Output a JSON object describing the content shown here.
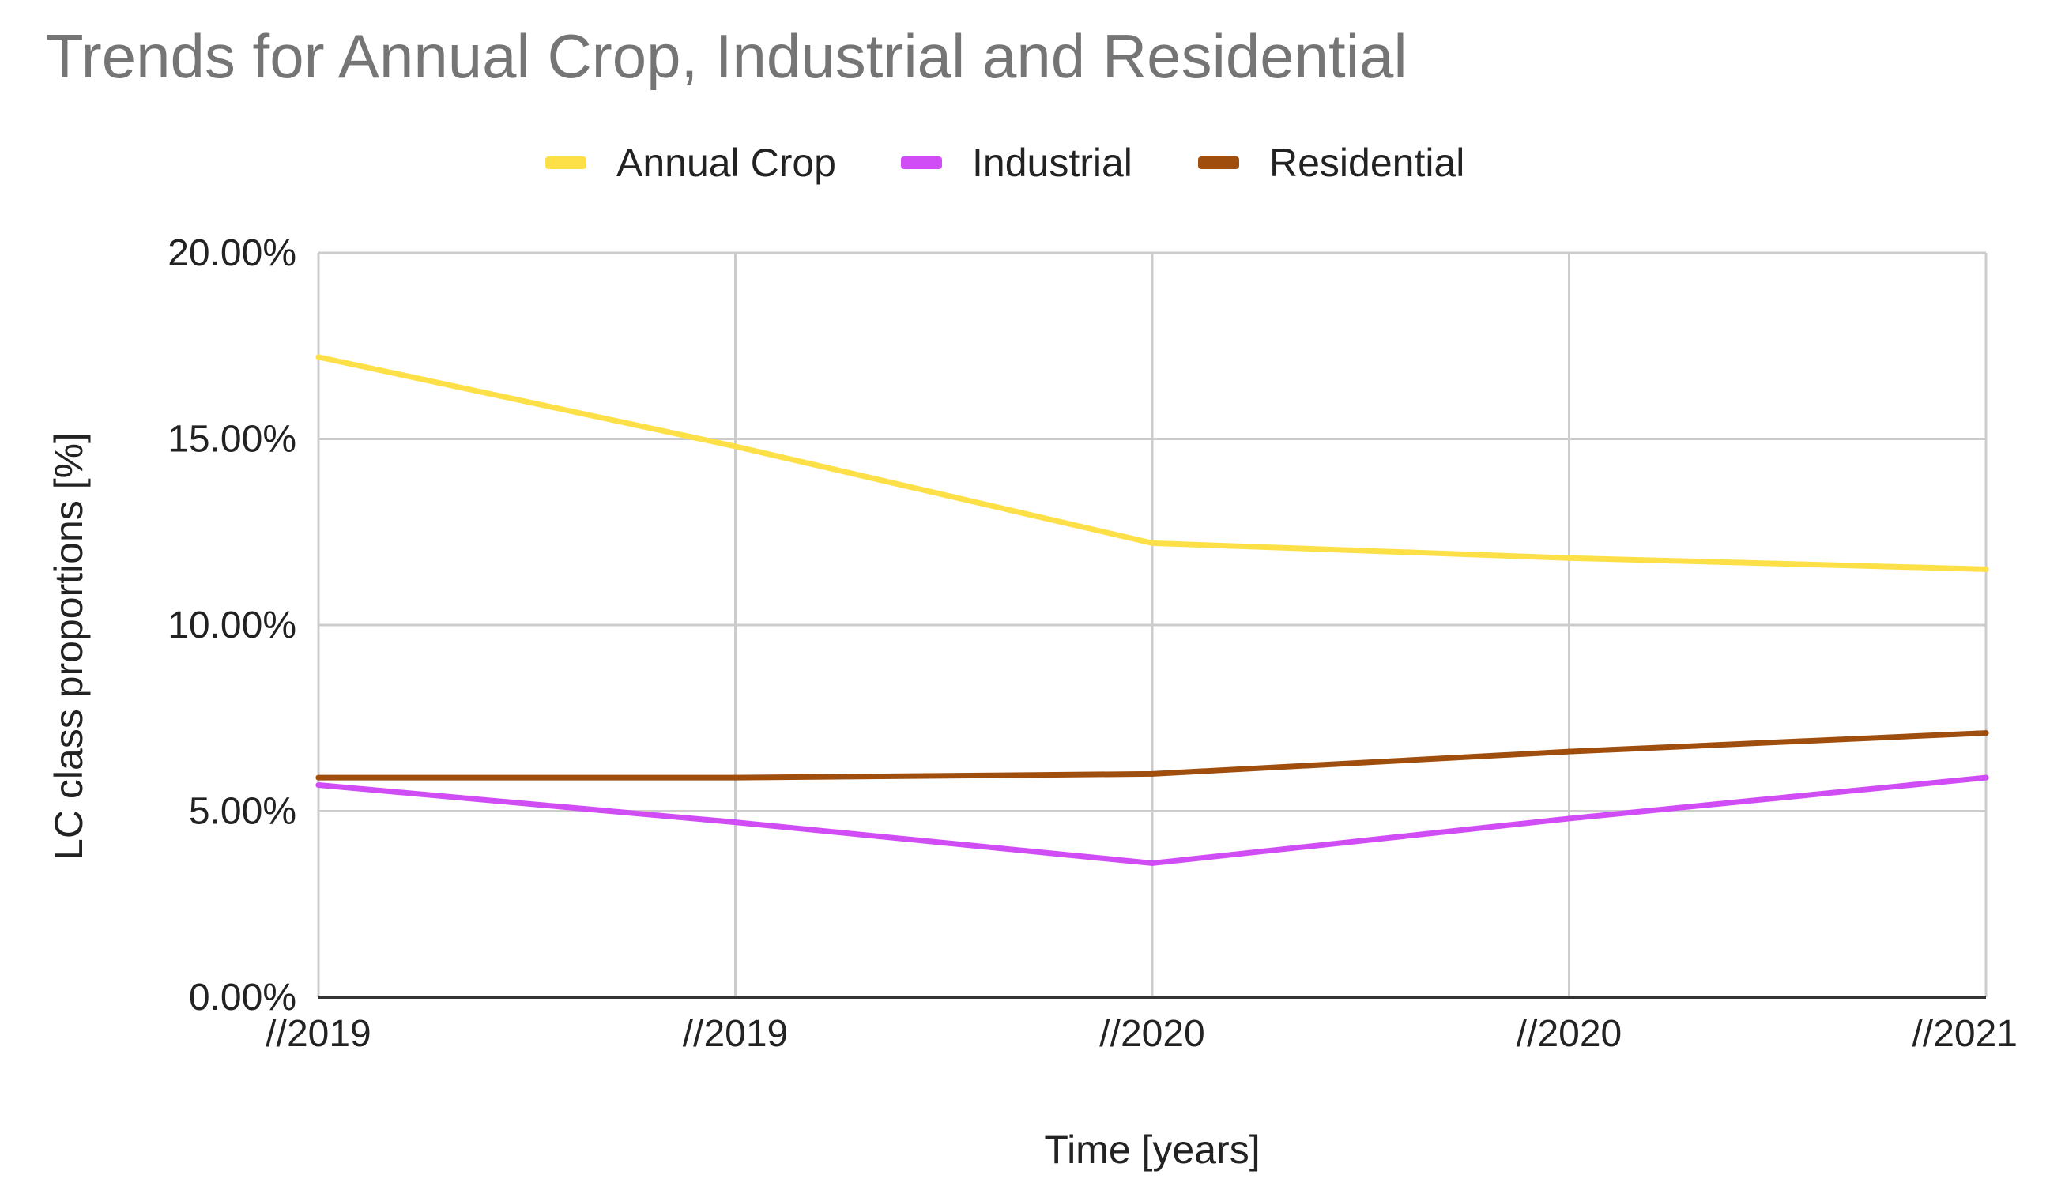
{
  "chart_data": {
    "type": "line",
    "title": "Trends for Annual Crop, Industrial and Residential",
    "xlabel": "Time [years]",
    "ylabel": "LC class proportions [%]",
    "categories": [
      "//2019",
      "//2019",
      "//2020",
      "//2020",
      "//2021"
    ],
    "ylim": [
      0,
      20
    ],
    "yticks": [
      0,
      5,
      10,
      15,
      20
    ],
    "ytick_labels": [
      "0.00%",
      "5.00%",
      "10.00%",
      "15.00%",
      "20.00%"
    ],
    "grid": true,
    "legend_position": "top-center",
    "series": [
      {
        "name": "Annual Crop",
        "color": "#FDE047",
        "values": [
          17.2,
          14.8,
          12.2,
          11.8,
          11.5
        ]
      },
      {
        "name": "Industrial",
        "color": "#D04CF5",
        "values": [
          5.7,
          4.7,
          3.6,
          4.8,
          5.9
        ]
      },
      {
        "name": "Residential",
        "color": "#A04E0E",
        "values": [
          5.9,
          5.9,
          6.0,
          6.6,
          7.1
        ]
      }
    ]
  }
}
